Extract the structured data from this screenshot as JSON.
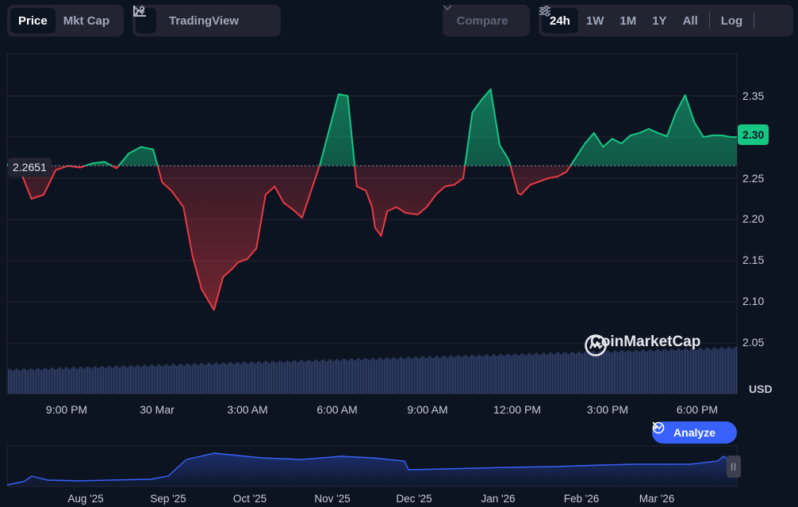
{
  "toolbar": {
    "type_tabs": [
      {
        "label": "Price",
        "active": true
      },
      {
        "label": "Mkt Cap",
        "active": false
      }
    ],
    "chart_style": {
      "line_icon": "line-chart-icon",
      "tradingview_label": "TradingView",
      "tradingview_icon": "candlestick-icon"
    },
    "compare_label": "Compare",
    "ranges": [
      {
        "label": "24h",
        "active": true
      },
      {
        "label": "1W",
        "active": false
      },
      {
        "label": "1M",
        "active": false
      },
      {
        "label": "1Y",
        "active": false
      },
      {
        "label": "All",
        "active": false
      }
    ],
    "log_label": "Log",
    "settings_icon": "sliders-icon"
  },
  "reference_price": "2.2651",
  "last_price": "2.30",
  "currency": "USD",
  "watermark": "CoinMarketCap",
  "analyze_label": "Analyze",
  "colors": {
    "up": "#16c784",
    "down": "#ea3943",
    "volume": "#3b4a7a",
    "nav_line": "#3861fb",
    "background": "#0d1421"
  },
  "chart_data": {
    "type": "line",
    "title": "",
    "xlabel": "",
    "ylabel": "USD",
    "ylim": [
      2.04,
      2.4
    ],
    "yticks": [
      "2.35",
      "2.30",
      "2.25",
      "2.20",
      "2.15",
      "2.10",
      "2.05"
    ],
    "xticks": [
      "9:00 PM",
      "30 Mar",
      "3:00 AM",
      "6:00 AM",
      "9:00 AM",
      "12:00 PM",
      "3:00 PM",
      "6:00 PM"
    ],
    "baseline": 2.2651,
    "x_hours": [
      0,
      0.4,
      0.8,
      1.2,
      1.6,
      2.0,
      2.4,
      2.8,
      3.2,
      3.6,
      4.0,
      4.4,
      4.8,
      5.1,
      5.4,
      5.8,
      6.1,
      6.4,
      6.8,
      7.1,
      7.4,
      7.6,
      7.9,
      8.2,
      8.5,
      8.8,
      9.1,
      9.4,
      9.7,
      10.0,
      10.3,
      10.6,
      10.9,
      11.2,
      11.5,
      11.8,
      12.0,
      12.1,
      12.3,
      12.5,
      12.8,
      13.1,
      13.5,
      13.8,
      14.1,
      14.4,
      14.7,
      15.0,
      15.3,
      15.6,
      15.9,
      16.2,
      16.5,
      16.8,
      16.9,
      17.2,
      17.5,
      17.8,
      18.1,
      18.4,
      18.7,
      19.0,
      19.3,
      19.6,
      19.9,
      20.2,
      20.5,
      20.8,
      21.1,
      21.4,
      21.7,
      22.0,
      22.3,
      22.6,
      22.9,
      23.2,
      23.5,
      23.8,
      24.0
    ],
    "prices": [
      2.267,
      2.262,
      2.225,
      2.23,
      2.26,
      2.265,
      2.263,
      2.268,
      2.27,
      2.262,
      2.28,
      2.288,
      2.285,
      2.245,
      2.235,
      2.215,
      2.155,
      2.115,
      2.09,
      2.13,
      2.14,
      2.148,
      2.152,
      2.165,
      2.23,
      2.24,
      2.22,
      2.212,
      2.202,
      2.235,
      2.268,
      2.31,
      2.352,
      2.35,
      2.24,
      2.235,
      2.215,
      2.19,
      2.18,
      2.21,
      2.215,
      2.208,
      2.206,
      2.215,
      2.23,
      2.24,
      2.242,
      2.25,
      2.33,
      2.345,
      2.358,
      2.29,
      2.272,
      2.232,
      2.23,
      2.242,
      2.246,
      2.25,
      2.252,
      2.258,
      2.275,
      2.292,
      2.305,
      2.288,
      2.298,
      2.292,
      2.302,
      2.305,
      2.31,
      2.305,
      2.301,
      2.33,
      2.351,
      2.318,
      2.3,
      2.302,
      2.302,
      2.3,
      2.3
    ],
    "nav_xticks": [
      "Aug '25",
      "Sep '25",
      "Oct '25",
      "Nov '25",
      "Dec '25",
      "Jan '26",
      "Feb '26",
      "Mar '26"
    ]
  }
}
